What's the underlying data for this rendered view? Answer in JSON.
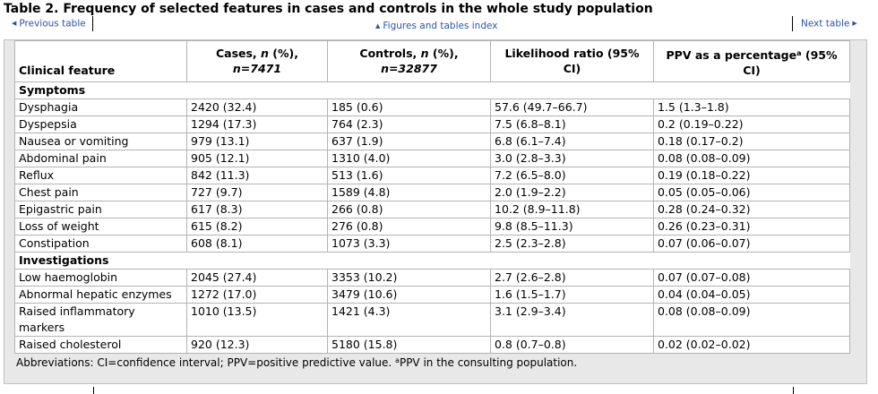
{
  "title": "Table 2. Frequency of selected features in cases and controls in the whole study population",
  "nav": {
    "previous": "Previous table",
    "index": "Figures and tables index",
    "next": "Next table"
  },
  "headers": {
    "feature": "Clinical feature",
    "cases": "Cases, ",
    "cases_n": "n",
    "cases_pct": " (%),",
    "cases_total": "n=7471",
    "controls": "Controls, ",
    "controls_n": "n",
    "controls_pct": " (%),",
    "controls_total": "n=32877",
    "lr": "Likelihood ratio (95% CI)",
    "ppv_a": "PPV as a percentage",
    "ppv_sup": "a",
    "ppv_b": " (95% CI)"
  },
  "sections": [
    {
      "label": "Symptoms",
      "rows": [
        {
          "feature": "Dysphagia",
          "cases": "2420 (32.4)",
          "controls": "185 (0.6)",
          "lr": "57.6 (49.7–66.7)",
          "ppv": "1.5 (1.3–1.8)"
        },
        {
          "feature": "Dyspepsia",
          "cases": "1294 (17.3)",
          "controls": "764 (2.3)",
          "lr": "7.5 (6.8–8.1)",
          "ppv": "0.2 (0.19–0.22)"
        },
        {
          "feature": "Nausea or vomiting",
          "cases": "979 (13.1)",
          "controls": "637 (1.9)",
          "lr": "6.8 (6.1–7.4)",
          "ppv": "0.18 (0.17–0.2)"
        },
        {
          "feature": "Abdominal pain",
          "cases": "905 (12.1)",
          "controls": "1310 (4.0)",
          "lr": "3.0 (2.8–3.3)",
          "ppv": "0.08 (0.08–0.09)"
        },
        {
          "feature": "Reflux",
          "cases": "842 (11.3)",
          "controls": "513 (1.6)",
          "lr": "7.2 (6.5–8.0)",
          "ppv": "0.19 (0.18–0.22)"
        },
        {
          "feature": "Chest pain",
          "cases": "727 (9.7)",
          "controls": "1589 (4.8)",
          "lr": "2.0 (1.9–2.2)",
          "ppv": "0.05 (0.05–0.06)"
        },
        {
          "feature": "Epigastric pain",
          "cases": "617 (8.3)",
          "controls": "266 (0.8)",
          "lr": "10.2 (8.9–11.8)",
          "ppv": "0.28 (0.24–0.32)"
        },
        {
          "feature": "Loss of weight",
          "cases": "615 (8.2)",
          "controls": "276 (0.8)",
          "lr": "9.8 (8.5–11.3)",
          "ppv": "0.26 (0.23–0.31)"
        },
        {
          "feature": "Constipation",
          "cases": "608 (8.1)",
          "controls": "1073 (3.3)",
          "lr": "2.5 (2.3–2.8)",
          "ppv": "0.07 (0.06–0.07)"
        }
      ]
    },
    {
      "label": "Investigations",
      "rows": [
        {
          "feature": "Low haemoglobin",
          "cases": "2045 (27.4)",
          "controls": "3353 (10.2)",
          "lr": "2.7 (2.6–2.8)",
          "ppv": "0.07 (0.07–0.08)"
        },
        {
          "feature": "Abnormal hepatic enzymes",
          "cases": "1272 (17.0)",
          "controls": "3479 (10.6)",
          "lr": "1.6 (1.5–1.7)",
          "ppv": "0.04 (0.04–0.05)"
        },
        {
          "feature": "Raised inflammatory markers",
          "cases": "1010 (13.5)",
          "controls": "1421 (4.3)",
          "lr": "3.1 (2.9–3.4)",
          "ppv": "0.08 (0.08–0.09)"
        },
        {
          "feature": "Raised cholesterol",
          "cases": "920 (12.3)",
          "controls": "5180 (15.8)",
          "lr": "0.8 (0.7–0.8)",
          "ppv": "0.02 (0.02–0.02)"
        }
      ]
    }
  ],
  "notes": {
    "text": "Abbreviations: CI=confidence interval; PPV=positive predictive value. ",
    "sup": "a",
    "text2": "PPV in the consulting population."
  }
}
